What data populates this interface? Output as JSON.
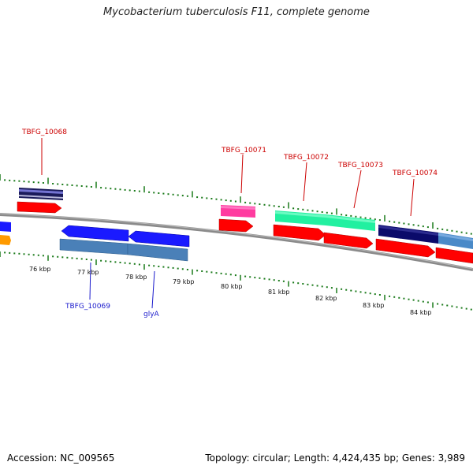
{
  "title": "Mycobacterium tuberculosis F11, complete genome",
  "footer": {
    "accession": "Accession: NC_009565",
    "stats": "Topology: circular; Length: 4,424,435 bp; Genes: 3,989"
  },
  "colors": {
    "backbone": "#8a8a8a",
    "tick": "#1a7a1a",
    "forward_label": "#cc0000",
    "reverse_label": "#1a1acc",
    "cds": "#ff0000"
  },
  "kbp_ticks": [
    "76 kbp",
    "77 kbp",
    "78 kbp",
    "79 kbp",
    "80 kbp",
    "81 kbp",
    "82 kbp",
    "83 kbp",
    "84 kbp"
  ],
  "forward_genes": [
    {
      "name": "TBFG_10068",
      "color": "#2a2a8a"
    },
    {
      "name": "TBFG_10071",
      "color": "#ff3ca0"
    },
    {
      "name": "TBFG_10072",
      "color": "#22f0a0"
    },
    {
      "name": "TBFG_10073",
      "color": "#22f0a0"
    },
    {
      "name": "TBFG_10074",
      "color": "#0a0a6a"
    },
    {
      "name": "",
      "color": "#4a8ac8"
    }
  ],
  "reverse_genes": [
    {
      "name": "",
      "color": "#1a1aff"
    },
    {
      "name": "TBFG_10069",
      "color": "#1a1aff"
    },
    {
      "name": "glyA",
      "color": "#1a1aff"
    }
  ]
}
